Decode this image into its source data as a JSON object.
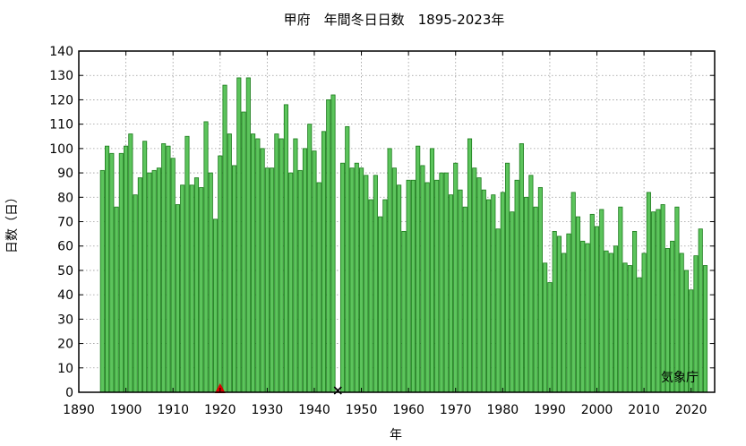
{
  "chart_data": {
    "type": "bar",
    "title": "甲府　年間冬日日数　1895-2023年",
    "xlabel": "年",
    "ylabel": "日数（日）",
    "credit": "気象庁",
    "xlim": [
      1890,
      2025
    ],
    "ylim": [
      0,
      140
    ],
    "xticks": [
      1890,
      1900,
      1910,
      1920,
      1930,
      1940,
      1950,
      1960,
      1970,
      1980,
      1990,
      2000,
      2010,
      2020
    ],
    "yticks": [
      0,
      10,
      20,
      30,
      40,
      50,
      60,
      70,
      80,
      90,
      100,
      110,
      120,
      130,
      140
    ],
    "grid": true,
    "bar_color": "#5cc45c",
    "bar_edge_color": "#1a7a1a",
    "start_year": 1895,
    "values": [
      91,
      101,
      98,
      76,
      98,
      101,
      106,
      81,
      88,
      103,
      90,
      91,
      92,
      102,
      101,
      96,
      77,
      85,
      105,
      85,
      88,
      84,
      111,
      90,
      71,
      97,
      126,
      106,
      93,
      129,
      115,
      129,
      106,
      104,
      100,
      92,
      92,
      106,
      104,
      118,
      90,
      104,
      91,
      100,
      110,
      99,
      86,
      107,
      120,
      122,
      null,
      94,
      109,
      92,
      94,
      92,
      89,
      79,
      89,
      72,
      79,
      100,
      92,
      85,
      66,
      87,
      87,
      101,
      93,
      86,
      100,
      87,
      90,
      90,
      81,
      94,
      83,
      76,
      104,
      92,
      88,
      83,
      79,
      81,
      67,
      82,
      94,
      74,
      87,
      102,
      80,
      89,
      76,
      84,
      53,
      45,
      66,
      64,
      57,
      65,
      82,
      72,
      62,
      61,
      73,
      68,
      75,
      58,
      57,
      60,
      76,
      53,
      52,
      66,
      47,
      57,
      82,
      74,
      75,
      77,
      59,
      62,
      76,
      57,
      50,
      42,
      56,
      67,
      52
    ],
    "markers": [
      {
        "year": 1920,
        "symbol": "triangle",
        "color": "#dd0000"
      },
      {
        "year": 1945,
        "symbol": "x",
        "color": "#000000"
      }
    ]
  }
}
